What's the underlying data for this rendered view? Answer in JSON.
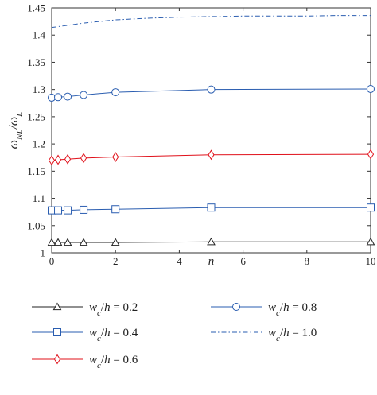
{
  "chart_data": {
    "type": "line",
    "xlabel": "n",
    "ylabel": "ω_{NL}/ω_L",
    "xlim": [
      0,
      10
    ],
    "ylim": [
      1.0,
      1.45
    ],
    "xticks": [
      0,
      2,
      4,
      6,
      8,
      10
    ],
    "xtick_labels": [
      "0",
      "2",
      "4",
      "6",
      "8",
      "10"
    ],
    "yticks": [
      1.0,
      1.05,
      1.1,
      1.15,
      1.2,
      1.25,
      1.3,
      1.35,
      1.4,
      1.45
    ],
    "ytick_labels": [
      "1",
      "1.05",
      "1.1",
      "1.15",
      "1.2",
      "1.25",
      "1.3",
      "1.35",
      "1.4",
      "1.45"
    ],
    "grid": false,
    "legend_position": "below",
    "series": [
      {
        "name": "w_c/h = 0.2",
        "color": "#222222",
        "marker": "triangle",
        "dashed": false,
        "x": [
          0,
          0.2,
          0.5,
          1,
          2,
          5,
          10
        ],
        "y": [
          1.019,
          1.019,
          1.019,
          1.019,
          1.019,
          1.02,
          1.02
        ]
      },
      {
        "name": "w_c/h = 0.4",
        "color": "#2a5db0",
        "marker": "square",
        "dashed": false,
        "x": [
          0,
          0.2,
          0.5,
          1,
          2,
          5,
          10
        ],
        "y": [
          1.078,
          1.078,
          1.078,
          1.079,
          1.08,
          1.083,
          1.083
        ]
      },
      {
        "name": "w_c/h = 0.6",
        "color": "#e0101a",
        "marker": "diamond",
        "dashed": false,
        "x": [
          0,
          0.2,
          0.5,
          1,
          2,
          5,
          10
        ],
        "y": [
          1.17,
          1.171,
          1.172,
          1.174,
          1.176,
          1.18,
          1.181
        ]
      },
      {
        "name": "w_c/h = 0.8",
        "color": "#2a5db0",
        "marker": "circle",
        "dashed": false,
        "x": [
          0,
          0.2,
          0.5,
          1,
          2,
          5,
          10
        ],
        "y": [
          1.285,
          1.286,
          1.287,
          1.29,
          1.295,
          1.3,
          1.301
        ]
      },
      {
        "name": "w_c/h = 1.0",
        "color": "#2a5db0",
        "marker": "none",
        "dashed": true,
        "x": [
          0,
          0.5,
          1,
          2,
          3,
          4,
          5,
          6,
          7,
          8,
          9,
          10
        ],
        "y": [
          1.414,
          1.418,
          1.422,
          1.428,
          1.431,
          1.433,
          1.434,
          1.435,
          1.435,
          1.435,
          1.436,
          1.436
        ]
      }
    ]
  }
}
